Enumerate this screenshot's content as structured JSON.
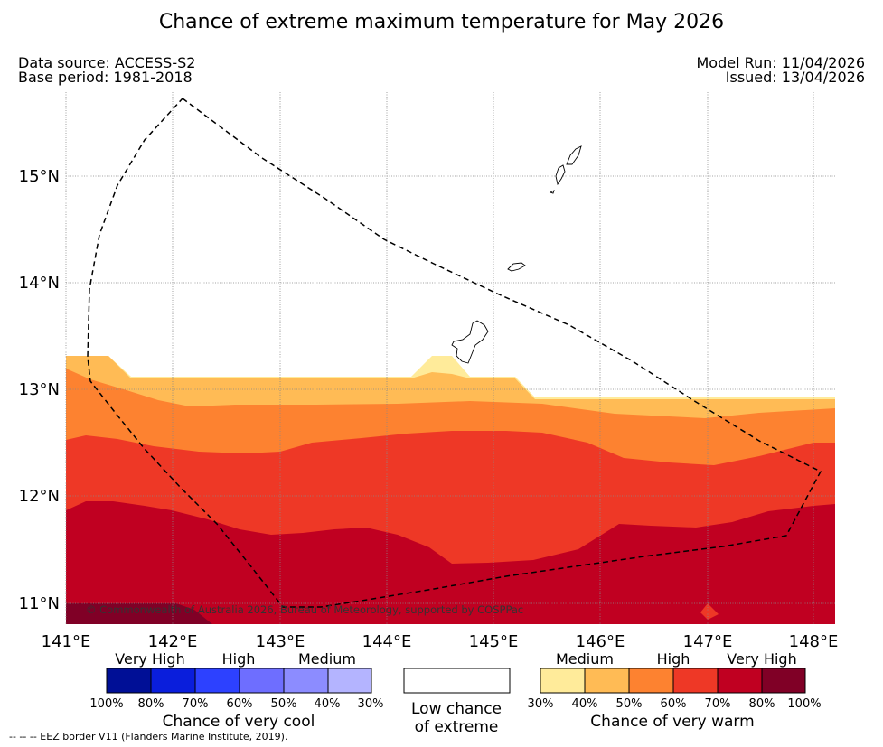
{
  "title": "Chance of extreme maximum temperature for May 2026",
  "meta": {
    "data_source": "Data source: ACCESS-S2",
    "base_period": "Base period: 1981-2018",
    "model_run": "Model Run: 11/04/2026",
    "issued": "Issued: 13/04/2026"
  },
  "map": {
    "lat_labels": [
      "15°N",
      "14°N",
      "13°N",
      "12°N",
      "11°N"
    ],
    "lon_labels": [
      "141°E",
      "142°E",
      "143°E",
      "144°E",
      "145°E",
      "146°E",
      "147°E",
      "148°E"
    ],
    "copyright": "© Commonwealth of Australia 2026, Bureau of Meteorology, supported by COSPPac"
  },
  "legend_cool": {
    "categories": [
      "Very High",
      "High",
      "Medium"
    ],
    "colors": [
      "#000f96",
      "#0a1edc",
      "#2d41ff",
      "#6e6eff",
      "#8c8cff",
      "#b4b4ff"
    ],
    "ticks": [
      "100%",
      "80%",
      "70%",
      "60%",
      "50%",
      "40%",
      "30%"
    ],
    "title": "Chance of very cool"
  },
  "legend_low": {
    "line1": "Low chance",
    "line2": "of extreme"
  },
  "legend_warm": {
    "categories": [
      "Medium",
      "High",
      "Very High"
    ],
    "colors": [
      "#ffeb9a",
      "#ffbb55",
      "#fd8230",
      "#ee3826",
      "#c00021",
      "#800026"
    ],
    "ticks": [
      "30%",
      "40%",
      "50%",
      "60%",
      "70%",
      "80%",
      "100%"
    ],
    "title": "Chance of very warm"
  },
  "footnote": "-- -- -- EEZ border V11 (Flanders Marine Institute, 2019)."
}
